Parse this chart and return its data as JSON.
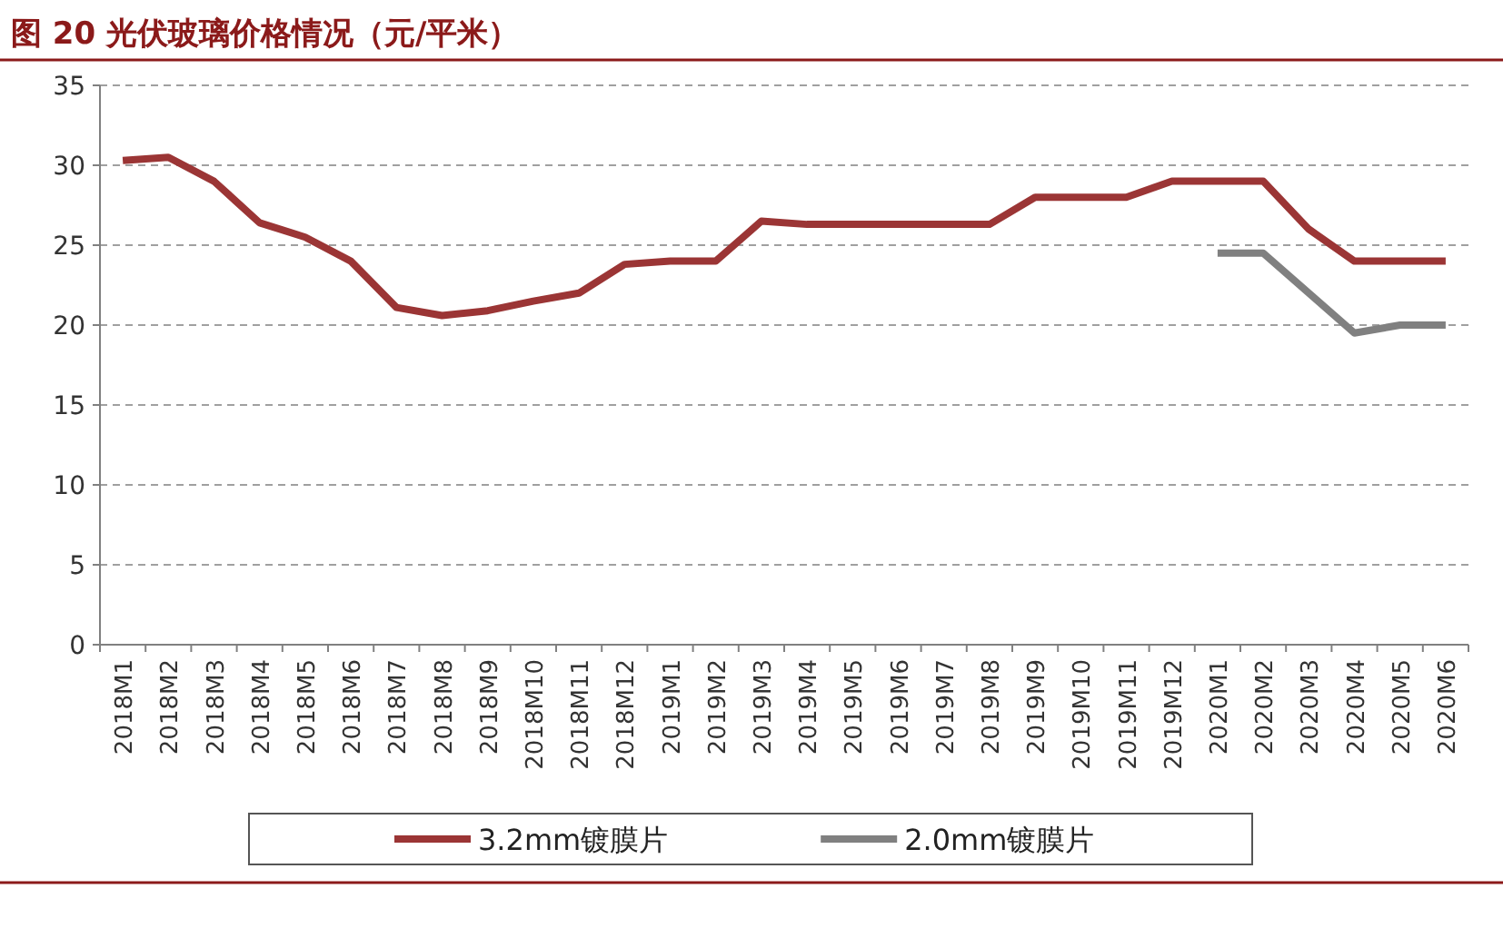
{
  "chart_data": {
    "type": "line",
    "title": "图 20  光伏玻璃价格情况（元/平米）",
    "categories": [
      "2018M1",
      "2018M2",
      "2018M3",
      "2018M4",
      "2018M5",
      "2018M6",
      "2018M7",
      "2018M8",
      "2018M9",
      "2018M10",
      "2018M11",
      "2018M12",
      "2019M1",
      "2019M2",
      "2019M3",
      "2019M4",
      "2019M5",
      "2019M6",
      "2019M7",
      "2019M8",
      "2019M9",
      "2019M10",
      "2019M11",
      "2019M12",
      "2020M1",
      "2020M2",
      "2020M3",
      "2020M4",
      "2020M5",
      "2020M6"
    ],
    "series": [
      {
        "name": "3.2mm镀膜片",
        "color": "#9b3535",
        "values": [
          30.3,
          30.5,
          29,
          26.4,
          25.5,
          24,
          21.1,
          20.6,
          20.9,
          21.5,
          22,
          23.8,
          24,
          24,
          26.5,
          26.3,
          26.3,
          26.3,
          26.3,
          26.3,
          28,
          28,
          28,
          29,
          29,
          29,
          26,
          24,
          24,
          24
        ]
      },
      {
        "name": "2.0mm镀膜片",
        "color": "#808080",
        "values": [
          null,
          null,
          null,
          null,
          null,
          null,
          null,
          null,
          null,
          null,
          null,
          null,
          null,
          null,
          null,
          null,
          null,
          null,
          null,
          null,
          null,
          null,
          null,
          null,
          24.5,
          24.5,
          22,
          19.5,
          20,
          20
        ]
      }
    ],
    "ylim": [
      0,
      35
    ],
    "yticks": [
      0,
      5,
      10,
      15,
      20,
      25,
      30,
      35
    ],
    "grid": "y",
    "legend": "bottom",
    "marker": "none",
    "line_style": "solid"
  }
}
